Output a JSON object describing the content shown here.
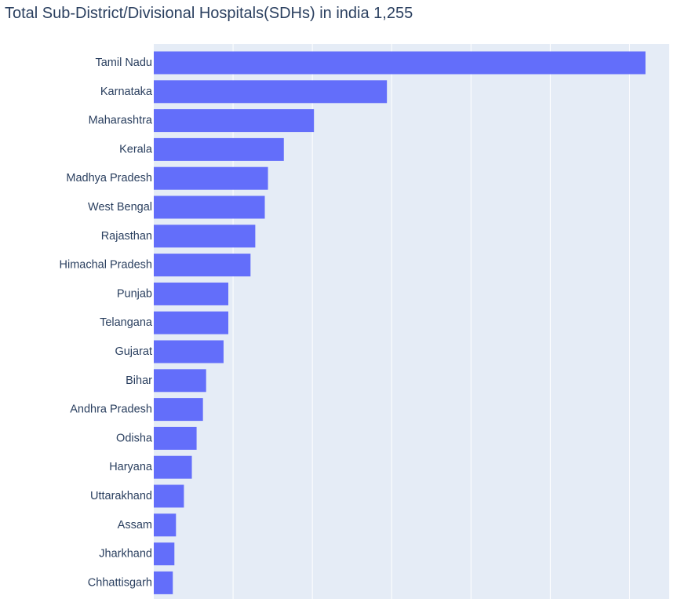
{
  "chart_data": {
    "type": "bar",
    "orientation": "horizontal",
    "title": "Total Sub-District/Divisional Hospitals(SDHs) in india 1,255",
    "categories": [
      "Tamil Nadu",
      "Karnataka",
      "Maharashtra",
      "Kerala",
      "Madhya Pradesh",
      "West Bengal",
      "Rajasthan",
      "Himachal Pradesh",
      "Punjab",
      "Telangana",
      "Gujarat",
      "Bihar",
      "Andhra Pradesh",
      "Odisha",
      "Haryana",
      "Uttarakhand",
      "Assam",
      "Jharkhand",
      "Chhattisgarh"
    ],
    "values": [
      310,
      147,
      101,
      82,
      72,
      70,
      64,
      61,
      47,
      47,
      44,
      33,
      31,
      27,
      24,
      19,
      14,
      13,
      12
    ],
    "xlim": [
      0,
      325
    ],
    "grid": true,
    "bar_color": "#636efa",
    "plot_background": "#e5ecf6",
    "gridline_color": "#ffffff",
    "text_color": "#2a3f5f"
  }
}
